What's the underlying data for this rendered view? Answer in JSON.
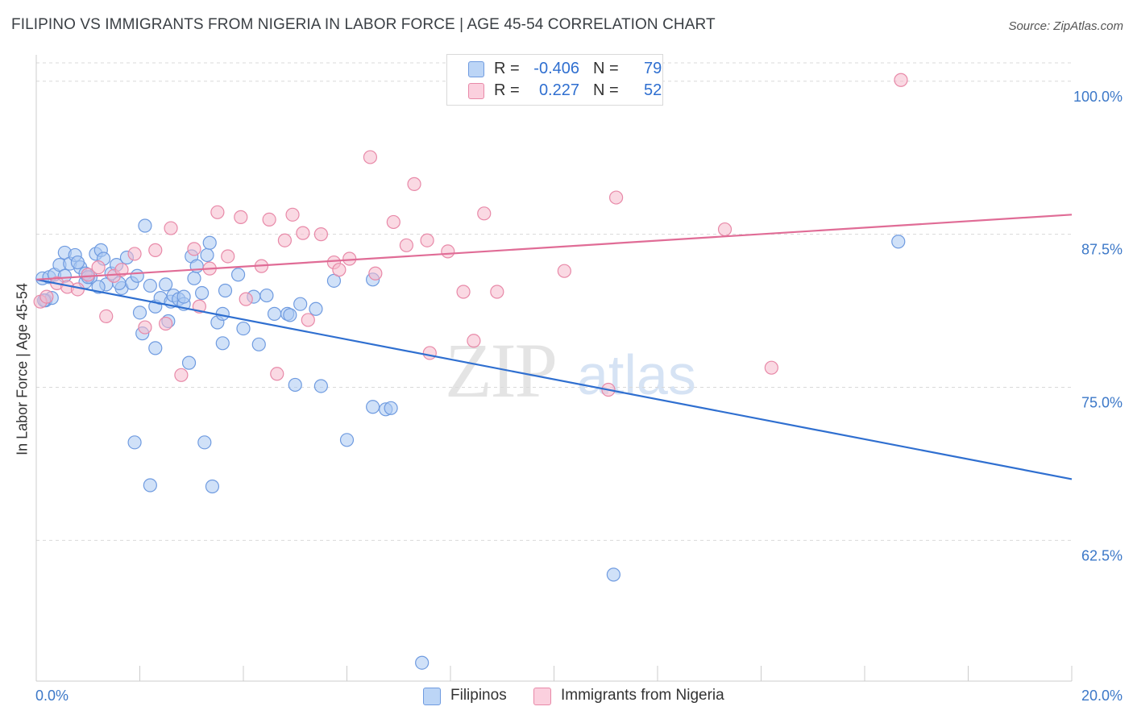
{
  "title": "FILIPINO VS IMMIGRANTS FROM NIGERIA IN LABOR FORCE | AGE 45-54 CORRELATION CHART",
  "source": "Source: ZipAtlas.com",
  "watermark": {
    "zip": "ZIP",
    "atlas": "atlas"
  },
  "legend": {
    "rows": [
      {
        "r_label": "R =",
        "r_value": "-0.406",
        "n_label": "N =",
        "n_value": "79"
      },
      {
        "r_label": "R =",
        "r_value": "0.227",
        "n_label": "N =",
        "n_value": "52"
      }
    ]
  },
  "colors": {
    "blue_fill": "#a9c9f3",
    "blue_stroke": "#6f9be0",
    "blue_line": "#2f6fd0",
    "pink_fill": "#f6b9cc",
    "pink_stroke": "#e889a8",
    "pink_line": "#e06c96",
    "tick_label": "#3c78c8",
    "grid": "#d9d9d9"
  },
  "chart_data": {
    "type": "scatter",
    "title": "FILIPINO VS IMMIGRANTS FROM NIGERIA IN LABOR FORCE | AGE 45-54 CORRELATION CHART",
    "xlabel": "",
    "ylabel": "In Labor Force | Age 45-54",
    "xlim": [
      0,
      20
    ],
    "ylim": [
      51,
      101.5
    ],
    "x_tick_labels": [
      "0.0%",
      "20.0%"
    ],
    "y_ticks": [
      62.5,
      75.0,
      87.5,
      100.0
    ],
    "y_tick_labels": [
      "62.5%",
      "75.0%",
      "87.5%",
      "100.0%"
    ],
    "grid": true,
    "legend_position": "top-center",
    "series": [
      {
        "name": "Filipinos",
        "color": "#a9c9f3",
        "trend": {
          "x": [
            0,
            20
          ],
          "y": [
            83.8,
            67.5
          ]
        },
        "points": [
          [
            0.12,
            83.9
          ],
          [
            0.18,
            82.1
          ],
          [
            0.25,
            84.0
          ],
          [
            0.35,
            84.2
          ],
          [
            0.45,
            85.0
          ],
          [
            0.55,
            86.0
          ],
          [
            0.65,
            85.1
          ],
          [
            0.75,
            85.8
          ],
          [
            0.85,
            84.8
          ],
          [
            0.95,
            83.6
          ],
          [
            1.05,
            84.0
          ],
          [
            1.15,
            85.9
          ],
          [
            1.25,
            86.2
          ],
          [
            1.35,
            83.4
          ],
          [
            1.45,
            84.3
          ],
          [
            1.55,
            85.0
          ],
          [
            1.65,
            83.1
          ],
          [
            1.75,
            85.6
          ],
          [
            1.85,
            83.5
          ],
          [
            1.95,
            84.1
          ],
          [
            2.0,
            81.1
          ],
          [
            2.05,
            79.4
          ],
          [
            2.1,
            88.2
          ],
          [
            2.2,
            83.3
          ],
          [
            2.3,
            81.6
          ],
          [
            2.4,
            82.3
          ],
          [
            2.5,
            83.4
          ],
          [
            2.55,
            80.4
          ],
          [
            2.6,
            82.0
          ],
          [
            2.65,
            82.5
          ],
          [
            2.75,
            82.2
          ],
          [
            2.85,
            81.8
          ],
          [
            3.0,
            85.7
          ],
          [
            3.05,
            83.9
          ],
          [
            3.1,
            84.9
          ],
          [
            3.2,
            82.7
          ],
          [
            3.3,
            85.8
          ],
          [
            3.35,
            86.8
          ],
          [
            3.5,
            80.3
          ],
          [
            3.6,
            78.6
          ],
          [
            3.65,
            82.9
          ],
          [
            3.9,
            84.2
          ],
          [
            4.0,
            79.8
          ],
          [
            4.2,
            82.4
          ],
          [
            4.3,
            78.5
          ],
          [
            4.45,
            82.5
          ],
          [
            4.6,
            81.0
          ],
          [
            4.85,
            81.0
          ],
          [
            5.0,
            75.2
          ],
          [
            5.1,
            81.8
          ],
          [
            5.4,
            81.4
          ],
          [
            5.5,
            75.1
          ],
          [
            5.75,
            83.7
          ],
          [
            6.0,
            70.7
          ],
          [
            6.5,
            83.8
          ],
          [
            6.5,
            73.4
          ],
          [
            6.75,
            73.2
          ],
          [
            6.85,
            73.3
          ],
          [
            7.45,
            52.5
          ],
          [
            2.2,
            67.0
          ],
          [
            3.4,
            66.9
          ],
          [
            3.25,
            70.5
          ],
          [
            1.9,
            70.5
          ],
          [
            2.95,
            77.0
          ],
          [
            2.3,
            78.2
          ],
          [
            1.3,
            85.5
          ],
          [
            0.95,
            84.3
          ],
          [
            0.55,
            84.1
          ],
          [
            0.3,
            82.3
          ],
          [
            0.15,
            82.1
          ],
          [
            11.15,
            59.7
          ],
          [
            16.65,
            86.9
          ],
          [
            1.2,
            83.2
          ],
          [
            0.8,
            85.2
          ],
          [
            1.6,
            83.5
          ],
          [
            2.85,
            82.4
          ],
          [
            4.9,
            80.9
          ],
          [
            3.6,
            81.0
          ],
          [
            1.0,
            84.0
          ]
        ]
      },
      {
        "name": "Immigrants from Nigeria",
        "color": "#f6b9cc",
        "trend": {
          "x": [
            0,
            20
          ],
          "y": [
            83.8,
            89.1
          ]
        },
        "points": [
          [
            0.08,
            82.0
          ],
          [
            0.2,
            82.4
          ],
          [
            0.4,
            83.5
          ],
          [
            0.6,
            83.2
          ],
          [
            0.8,
            83.0
          ],
          [
            1.0,
            84.2
          ],
          [
            1.2,
            84.8
          ],
          [
            1.35,
            80.8
          ],
          [
            1.5,
            84.1
          ],
          [
            1.65,
            84.6
          ],
          [
            1.9,
            85.9
          ],
          [
            2.1,
            79.9
          ],
          [
            2.3,
            86.2
          ],
          [
            2.5,
            80.2
          ],
          [
            2.6,
            88.0
          ],
          [
            2.8,
            76.0
          ],
          [
            3.05,
            86.3
          ],
          [
            3.15,
            81.6
          ],
          [
            3.35,
            84.7
          ],
          [
            3.5,
            89.3
          ],
          [
            3.7,
            85.7
          ],
          [
            3.95,
            88.9
          ],
          [
            4.05,
            82.2
          ],
          [
            4.35,
            84.9
          ],
          [
            4.5,
            88.7
          ],
          [
            4.65,
            76.1
          ],
          [
            4.8,
            87.0
          ],
          [
            4.95,
            89.1
          ],
          [
            5.15,
            87.6
          ],
          [
            5.25,
            80.5
          ],
          [
            5.5,
            87.5
          ],
          [
            5.75,
            85.2
          ],
          [
            5.85,
            84.6
          ],
          [
            6.05,
            85.5
          ],
          [
            6.45,
            93.8
          ],
          [
            6.55,
            84.3
          ],
          [
            6.9,
            88.5
          ],
          [
            7.15,
            86.6
          ],
          [
            7.3,
            91.6
          ],
          [
            7.55,
            87.0
          ],
          [
            7.6,
            77.8
          ],
          [
            7.95,
            86.1
          ],
          [
            8.25,
            82.8
          ],
          [
            8.45,
            78.8
          ],
          [
            8.65,
            89.2
          ],
          [
            8.9,
            82.8
          ],
          [
            10.2,
            84.5
          ],
          [
            11.05,
            74.8
          ],
          [
            11.2,
            90.5
          ],
          [
            13.3,
            87.9
          ],
          [
            14.2,
            76.6
          ],
          [
            16.7,
            100.1
          ]
        ]
      }
    ]
  },
  "bottom_legend": {
    "items": [
      {
        "label": "Filipinos"
      },
      {
        "label": "Immigrants from Nigeria"
      }
    ]
  }
}
